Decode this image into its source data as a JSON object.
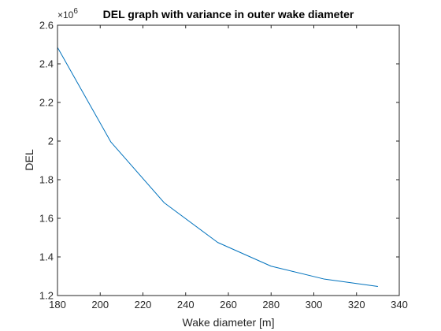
{
  "chart_data": {
    "type": "line",
    "title": "DEL graph with variance in outer wake diameter",
    "xlabel": "Wake diameter [m]",
    "ylabel": "DEL",
    "y_exponent_label": "×10",
    "y_exponent_power": "6",
    "xlim": [
      180,
      340
    ],
    "ylim": [
      1.2,
      2.6
    ],
    "x_ticks": [
      180,
      200,
      220,
      240,
      260,
      280,
      300,
      320,
      340
    ],
    "y_ticks": [
      1.2,
      1.4,
      1.6,
      1.8,
      2.0,
      2.2,
      2.4,
      2.6
    ],
    "x_tick_labels": [
      "180",
      "200",
      "220",
      "240",
      "260",
      "280",
      "300",
      "320",
      "340"
    ],
    "y_tick_labels": [
      "1.2",
      "1.4",
      "1.6",
      "1.8",
      "2",
      "2.2",
      "2.4",
      "2.6"
    ],
    "grid": false,
    "series": [
      {
        "color": "#0072bd",
        "x": [
          180,
          205,
          230,
          255,
          280,
          305,
          330
        ],
        "y": [
          2.485,
          1.995,
          1.68,
          1.475,
          1.352,
          1.285,
          1.247
        ]
      }
    ]
  }
}
